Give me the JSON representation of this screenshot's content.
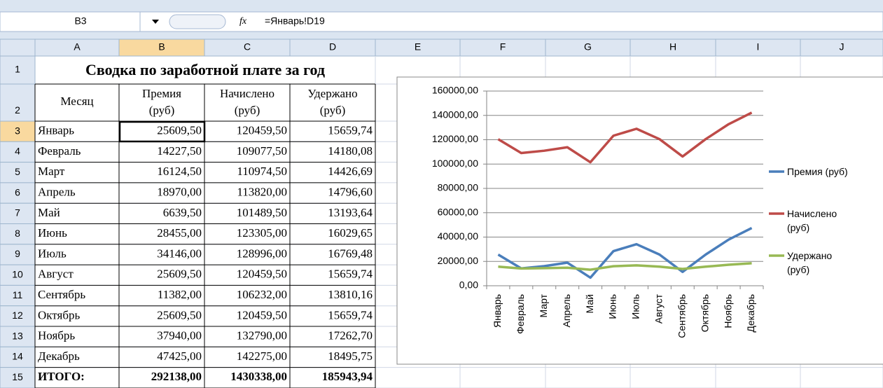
{
  "formula_bar": {
    "name_box": "B3",
    "fx": "fx",
    "formula": "=Январь!D19"
  },
  "columns": [
    "A",
    "B",
    "C",
    "D",
    "E",
    "F",
    "G",
    "H",
    "I",
    "J"
  ],
  "row_numbers": [
    "1",
    "2",
    "3",
    "4",
    "5",
    "6",
    "7",
    "8",
    "9",
    "10",
    "11",
    "12",
    "13",
    "14",
    "15"
  ],
  "table": {
    "title": "Сводка по заработной плате за год",
    "headers": [
      [
        "Месяц"
      ],
      [
        "Премия",
        "(руб)"
      ],
      [
        "Начислено",
        "(руб)"
      ],
      [
        "Удержано",
        "(руб)"
      ]
    ],
    "rows": [
      [
        "Январь",
        "25609,50",
        "120459,50",
        "15659,74"
      ],
      [
        "Февраль",
        "14227,50",
        "109077,50",
        "14180,08"
      ],
      [
        "Март",
        "16124,50",
        "110974,50",
        "14426,69"
      ],
      [
        "Апрель",
        "18970,00",
        "113820,00",
        "14796,60"
      ],
      [
        "Май",
        "6639,50",
        "101489,50",
        "13193,64"
      ],
      [
        "Июнь",
        "28455,00",
        "123305,00",
        "16029,65"
      ],
      [
        "Июль",
        "34146,00",
        "128996,00",
        "16769,48"
      ],
      [
        "Август",
        "25609,50",
        "120459,50",
        "15659,74"
      ],
      [
        "Сентябрь",
        "11382,00",
        "106232,00",
        "13810,16"
      ],
      [
        "Октябрь",
        "25609,50",
        "120459,50",
        "15659,74"
      ],
      [
        "Ноябрь",
        "37940,00",
        "132790,00",
        "17262,70"
      ],
      [
        "Декабрь",
        "47425,00",
        "142275,00",
        "18495,75"
      ]
    ],
    "total": [
      "ИТОГО:",
      "292138,00",
      "1430338,00",
      "185943,94"
    ]
  },
  "chart": {
    "type": "line",
    "categories": [
      "Январь",
      "Февраль",
      "Март",
      "Апрель",
      "Май",
      "Июнь",
      "Июль",
      "Август",
      "Сентябрь",
      "Октябрь",
      "Ноябрь",
      "Декабрь"
    ],
    "series": [
      {
        "name": "Премия (руб)",
        "color": "#4a7ebb",
        "values": [
          25609.5,
          14227.5,
          16124.5,
          18970,
          6639.5,
          28455,
          34146,
          25609.5,
          11382,
          25609.5,
          37940,
          47425
        ]
      },
      {
        "name": "Начислено (руб)",
        "color": "#be4b48",
        "values": [
          120459.5,
          109077.5,
          110974.5,
          113820,
          101489.5,
          123305,
          128996,
          120459.5,
          106232,
          120459.5,
          132790,
          142275
        ]
      },
      {
        "name": "Удержано (руб)",
        "color": "#98b954",
        "values": [
          15659.74,
          14180.08,
          14426.69,
          14796.6,
          13193.64,
          16029.65,
          16769.48,
          15659.74,
          13810.16,
          15659.74,
          17262.7,
          18495.75
        ]
      }
    ],
    "ylim": [
      0,
      160000
    ],
    "yticks": [
      {
        "value": 0,
        "label": "0,00"
      },
      {
        "value": 20000,
        "label": "20000,00"
      },
      {
        "value": 40000,
        "label": "40000,00"
      },
      {
        "value": 60000,
        "label": "60000,00"
      },
      {
        "value": 80000,
        "label": "80000,00"
      },
      {
        "value": 100000,
        "label": "100000,00"
      },
      {
        "value": 120000,
        "label": "120000,00"
      },
      {
        "value": 140000,
        "label": "140000,00"
      },
      {
        "value": 160000,
        "label": "160000,00"
      }
    ],
    "grid": true,
    "legend": "right"
  }
}
